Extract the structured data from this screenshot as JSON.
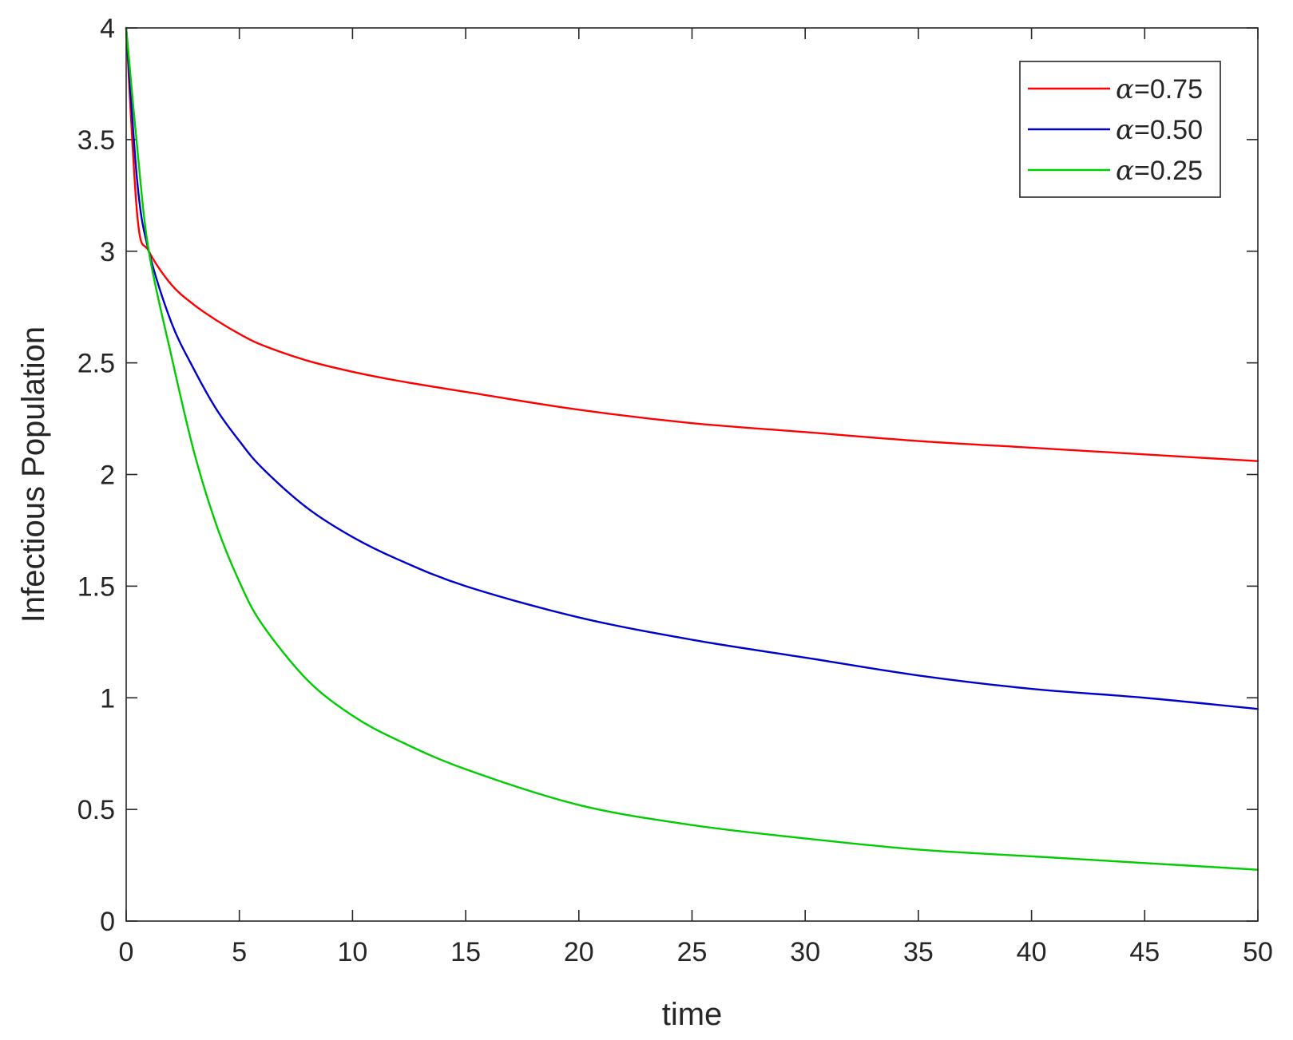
{
  "chart_data": {
    "type": "line",
    "title": "",
    "xlabel": "time",
    "ylabel": "Infectious Population",
    "xlim": [
      0,
      50
    ],
    "ylim": [
      0,
      4
    ],
    "xticks": [
      0,
      5,
      10,
      15,
      20,
      25,
      30,
      35,
      40,
      45,
      50
    ],
    "yticks": [
      0,
      0.5,
      1,
      1.5,
      2,
      2.5,
      3,
      3.5,
      4
    ],
    "xtick_labels": [
      "0",
      "5",
      "10",
      "15",
      "20",
      "25",
      "30",
      "35",
      "40",
      "45",
      "50"
    ],
    "ytick_labels": [
      "0",
      "0.5",
      "1",
      "1.5",
      "2",
      "2.5",
      "3",
      "3.5",
      "4"
    ],
    "grid": false,
    "legend_position": "top-right",
    "x": [
      0,
      0.5,
      1,
      2,
      3,
      4,
      5,
      6,
      8,
      10,
      12,
      15,
      20,
      25,
      30,
      35,
      40,
      45,
      50
    ],
    "series": [
      {
        "name": "=0.75",
        "symbol": "α",
        "color": "#ff0000",
        "values": [
          4.0,
          3.15,
          3.0,
          2.85,
          2.76,
          2.69,
          2.63,
          2.58,
          2.51,
          2.46,
          2.42,
          2.37,
          2.29,
          2.23,
          2.19,
          2.15,
          2.12,
          2.09,
          2.06
        ]
      },
      {
        "name": "=0.50",
        "symbol": "α",
        "color": "#0000cc",
        "values": [
          4.0,
          3.3,
          3.0,
          2.68,
          2.47,
          2.29,
          2.15,
          2.03,
          1.85,
          1.72,
          1.62,
          1.5,
          1.36,
          1.26,
          1.18,
          1.1,
          1.04,
          1.0,
          0.95
        ]
      },
      {
        "name": "=0.25",
        "symbol": "α",
        "color": "#00cc00",
        "values": [
          4.0,
          3.45,
          3.0,
          2.53,
          2.1,
          1.77,
          1.52,
          1.33,
          1.08,
          0.92,
          0.81,
          0.68,
          0.52,
          0.43,
          0.37,
          0.32,
          0.29,
          0.26,
          0.23
        ]
      }
    ]
  }
}
